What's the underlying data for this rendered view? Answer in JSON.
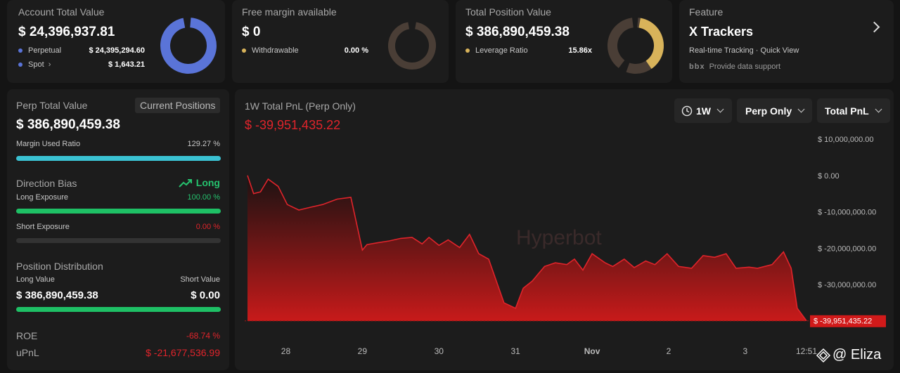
{
  "top": {
    "account": {
      "label": "Account Total Value",
      "value": "$ 24,396,937.81",
      "rows": [
        {
          "label": "Perpetual",
          "value": "$ 24,395,294.60",
          "color": "#5a74d8"
        },
        {
          "label": "Spot",
          "value": "$ 1,643.21",
          "color": "#5a74d8"
        }
      ],
      "donut_fraction": 0.9999
    },
    "margin": {
      "label": "Free margin available",
      "value": "$ 0",
      "row_label": "Withdrawable",
      "row_value": "0.00 %",
      "color": "#d8b35a",
      "donut_fraction": 0
    },
    "position": {
      "label": "Total Position Value",
      "value": "$ 386,890,459.38",
      "row_label": "Leverage Ratio",
      "row_value": "15.86x",
      "color": "#d8b35a",
      "donut_fraction": 0.4
    },
    "feature": {
      "label": "Feature",
      "title": "X Trackers",
      "subtitle": "Real-time Tracking · Quick View",
      "logo": "bbx",
      "support": "Provide data support"
    }
  },
  "left": {
    "perp_label": "Perp Total Value",
    "tab_label": "Current Positions",
    "perp_value": "$ 386,890,459.38",
    "margin_ratio_label": "Margin Used Ratio",
    "margin_ratio_value": "129.27 %",
    "margin_ratio_fraction": 1.0,
    "direction_label": "Direction Bias",
    "direction_value": "Long",
    "long_exp_label": "Long Exposure",
    "long_exp_value": "100.00 %",
    "long_exp_fraction": 1.0,
    "short_exp_label": "Short Exposure",
    "short_exp_value": "0.00 %",
    "short_exp_fraction": 0.0,
    "dist_label": "Position Distribution",
    "long_value_label": "Long Value",
    "short_value_label": "Short Value",
    "long_value": "$ 386,890,459.38",
    "short_value": "$ 0.00",
    "long_value_fraction": 1.0,
    "roe_label": "ROE",
    "roe_value": "-68.74 %",
    "upnl_label": "uPnL",
    "upnl_value": "$ -21,677,536.99"
  },
  "chart_panel": {
    "title": "1W Total PnL (Perp Only)",
    "value": "$ -39,951,435.22",
    "period": "1W",
    "scope": "Perp Only",
    "metric": "Total PnL",
    "watermark": "Hyperbot",
    "badge": "$ -39,951,435.22"
  },
  "chart_data": {
    "type": "area",
    "title": "1W Total PnL (Perp Only)",
    "ylabel": "",
    "ylim": [
      -40000000,
      10000000
    ],
    "y_ticks": [
      "$ 10,000,000.00",
      "$ 0.00",
      "$ -10,000,000.00",
      "$ -20,000,000.00",
      "$ -30,000,000.00"
    ],
    "y_tick_values": [
      10000000,
      0,
      -10000000,
      -20000000,
      -30000000
    ],
    "x_ticks": [
      "28",
      "29",
      "30",
      "31",
      "Nov",
      "2",
      "3",
      "12:51"
    ],
    "x_tick_positions": [
      0.5,
      1.5,
      2.5,
      3.5,
      4.5,
      5.5,
      6.5,
      7.3
    ],
    "x_range": [
      0,
      7.3
    ],
    "x": [
      0,
      0.08,
      0.17,
      0.27,
      0.4,
      0.52,
      0.67,
      0.83,
      0.98,
      1.17,
      1.35,
      1.5,
      1.56,
      1.7,
      1.85,
      2.0,
      2.15,
      2.28,
      2.37,
      2.5,
      2.62,
      2.77,
      2.9,
      3.02,
      3.15,
      3.35,
      3.5,
      3.6,
      3.72,
      3.88,
      4.02,
      4.17,
      4.27,
      4.38,
      4.5,
      4.67,
      4.77,
      4.92,
      5.05,
      5.2,
      5.32,
      5.48,
      5.63,
      5.8,
      5.95,
      6.1,
      6.25,
      6.38,
      6.55,
      6.66,
      6.85,
      7.0,
      7.1,
      7.18,
      7.3
    ],
    "values": [
      0,
      -5000000,
      -4500000,
      -1000000,
      -3000000,
      -8000000,
      -9500000,
      -8700000,
      -8000000,
      -6500000,
      -6000000,
      -20500000,
      -19000000,
      -18500000,
      -18000000,
      -17300000,
      -17000000,
      -18800000,
      -17000000,
      -19200000,
      -17700000,
      -19800000,
      -16200000,
      -21500000,
      -23000000,
      -35000000,
      -36500000,
      -31000000,
      -29000000,
      -25000000,
      -24000000,
      -24500000,
      -23000000,
      -26000000,
      -21500000,
      -24000000,
      -25000000,
      -23000000,
      -25300000,
      -23500000,
      -24500000,
      -21500000,
      -25000000,
      -25500000,
      -22000000,
      -22500000,
      -21500000,
      -25500000,
      -25200000,
      -25500000,
      -24500000,
      -21000000,
      -25500000,
      -36500000,
      -39951435
    ]
  }
}
